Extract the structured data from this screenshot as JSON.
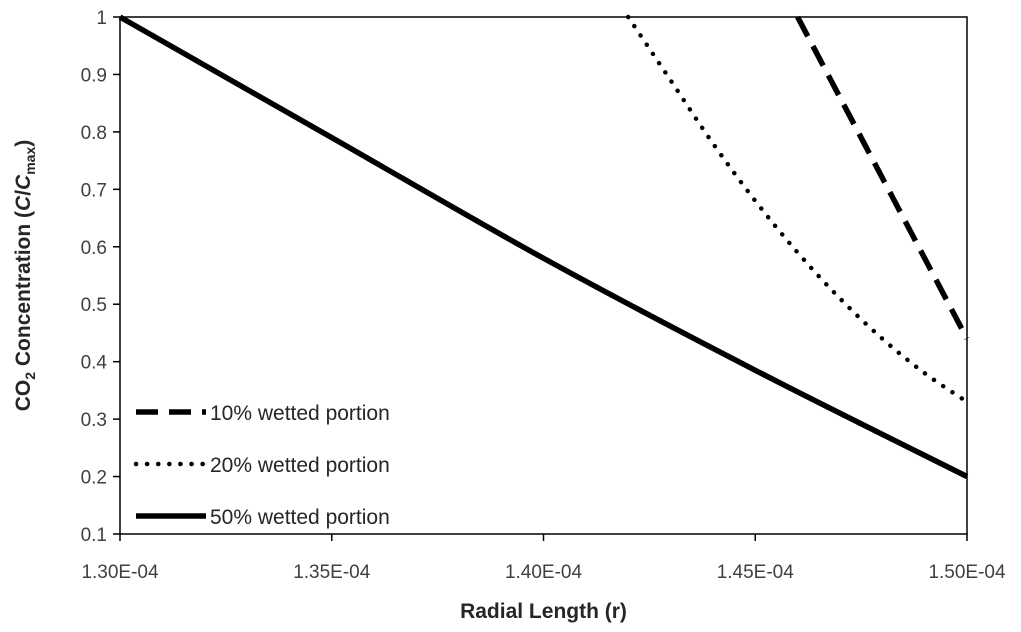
{
  "chart_data": {
    "type": "line",
    "xlabel": "Radial Length (r)",
    "ylabel": {
      "parts": [
        "CO",
        "2",
        " Concentration (",
        "C",
        "/",
        "C",
        "max",
        ")"
      ]
    },
    "xlim": [
      0.00013,
      0.00015
    ],
    "ylim": [
      0.1,
      1.0
    ],
    "x_ticks": [
      {
        "value": 0.00013,
        "label": "1.30E-04"
      },
      {
        "value": 0.000135,
        "label": "1.35E-04"
      },
      {
        "value": 0.00014,
        "label": "1.40E-04"
      },
      {
        "value": 0.000145,
        "label": "1.45E-04"
      },
      {
        "value": 0.00015,
        "label": "1.50E-04"
      }
    ],
    "y_ticks": [
      {
        "value": 0.1,
        "label": "0.1"
      },
      {
        "value": 0.2,
        "label": "0.2"
      },
      {
        "value": 0.3,
        "label": "0.3"
      },
      {
        "value": 0.4,
        "label": "0.4"
      },
      {
        "value": 0.5,
        "label": "0.5"
      },
      {
        "value": 0.6,
        "label": "0.6"
      },
      {
        "value": 0.7,
        "label": "0.7"
      },
      {
        "value": 0.8,
        "label": "0.8"
      },
      {
        "value": 0.9,
        "label": "0.9"
      },
      {
        "value": 1.0,
        "label": "1"
      }
    ],
    "grid": false,
    "legend_position": "bottom-left",
    "series": [
      {
        "name": "10% wetted portion",
        "style": "dashed",
        "color": "#000000",
        "points": [
          {
            "x": 0.000146,
            "y": 1.0
          },
          {
            "x": 0.000147,
            "y": 0.86
          },
          {
            "x": 0.000148,
            "y": 0.72
          },
          {
            "x": 0.000149,
            "y": 0.58
          },
          {
            "x": 0.00015,
            "y": 0.44
          }
        ]
      },
      {
        "name": "20% wetted portion",
        "style": "dotted",
        "color": "#000000",
        "points": [
          {
            "x": 0.000142,
            "y": 1.0
          },
          {
            "x": 0.000143,
            "y": 0.89
          },
          {
            "x": 0.000144,
            "y": 0.78
          },
          {
            "x": 0.000145,
            "y": 0.68
          },
          {
            "x": 0.000146,
            "y": 0.59
          },
          {
            "x": 0.000147,
            "y": 0.51
          },
          {
            "x": 0.000148,
            "y": 0.44
          },
          {
            "x": 0.000149,
            "y": 0.38
          },
          {
            "x": 0.00015,
            "y": 0.33
          }
        ]
      },
      {
        "name": "50% wetted portion",
        "style": "solid",
        "color": "#000000",
        "points": [
          {
            "x": 0.00013,
            "y": 1.0
          },
          {
            "x": 0.000135,
            "y": 0.79
          },
          {
            "x": 0.00014,
            "y": 0.58
          },
          {
            "x": 0.000145,
            "y": 0.385
          },
          {
            "x": 0.00015,
            "y": 0.2
          }
        ]
      }
    ]
  },
  "colors": {
    "axis": "#000000",
    "series": "#000000",
    "tick_text": "#404040",
    "title_text": "#262626"
  }
}
